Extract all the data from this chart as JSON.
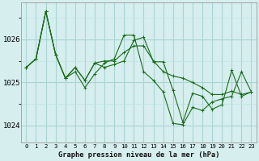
{
  "title": "Graphe pression niveau de la mer (hPa)",
  "bg_color": "#d6eeee",
  "grid_color_major": "#aad4d4",
  "grid_color_minor": "#c0e4e4",
  "line_color": "#1a6b1a",
  "x_labels": [
    "0",
    "1",
    "2",
    "3",
    "4",
    "5",
    "6",
    "7",
    "8",
    "9",
    "10",
    "11",
    "12",
    "13",
    "14",
    "15",
    "16",
    "17",
    "18",
    "19",
    "20",
    "21",
    "22",
    "23"
  ],
  "ylim": [
    1023.6,
    1026.85
  ],
  "yticks": [
    1024,
    1025,
    1026
  ],
  "series": [
    [
      1025.35,
      1025.55,
      1026.65,
      1025.65,
      1025.1,
      1025.35,
      1025.05,
      1025.45,
      1025.5,
      1025.5,
      1025.7,
      1025.85,
      1025.85,
      1025.5,
      1025.25,
      1025.15,
      1025.1,
      1025.0,
      1024.88,
      1024.72,
      1024.72,
      1024.8,
      1024.72,
      1024.78
    ],
    [
      1025.35,
      1025.55,
      1026.65,
      1025.65,
      1025.1,
      1025.25,
      1024.88,
      1025.2,
      1025.45,
      1025.55,
      1026.1,
      1026.1,
      1025.25,
      1025.05,
      1024.78,
      1024.05,
      1024.02,
      1024.42,
      1024.35,
      1024.55,
      1024.62,
      1024.68,
      1025.25,
      1024.78
    ],
    [
      1025.35,
      1025.55,
      1026.65,
      1025.65,
      1025.1,
      1025.35,
      1025.05,
      1025.45,
      1025.35,
      1025.42,
      1025.5,
      1025.98,
      1026.05,
      1025.48,
      1025.48,
      1024.82,
      1024.08,
      1024.75,
      1024.68,
      1024.38,
      1024.48,
      1025.28,
      1024.68,
      1024.78
    ]
  ]
}
